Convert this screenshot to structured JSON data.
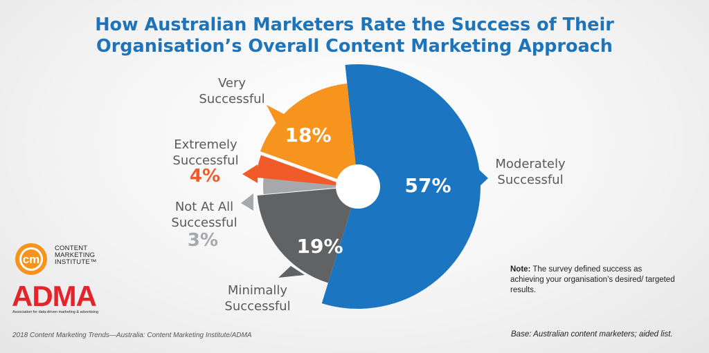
{
  "header": {
    "title_line1": "How Australian Marketers Rate the Success of Their",
    "title_line2": "Organisation’s Overall Content Marketing Approach"
  },
  "chart_data": {
    "type": "pie",
    "slices": [
      {
        "label_lines": [
          "Moderately",
          "Successful"
        ],
        "value": 57,
        "value_label": "57%",
        "color": "#1b75c0"
      },
      {
        "label_lines": [
          "Minimally",
          "Successful"
        ],
        "value": 19,
        "value_label": "19%",
        "color": "#616264"
      },
      {
        "label_lines": [
          "Not At All",
          "Successful"
        ],
        "value": 3,
        "value_label": "3%",
        "color": "#a6a8ab"
      },
      {
        "label_lines": [
          "Extremely",
          "Successful"
        ],
        "value": 4,
        "value_label": "4%",
        "color": "#f15a29"
      },
      {
        "label_lines": [
          "Very",
          "Successful"
        ],
        "value": 18,
        "value_label": "18%",
        "color": "#f7941d"
      }
    ]
  },
  "logos": {
    "cmi_mark": "cm",
    "cmi_line1": "CONTENT",
    "cmi_line2": "MARKETING",
    "cmi_line3": "INSTITUTE™",
    "adma_name": "ADMA",
    "adma_tagline": "Association for data-driven marketing & advertising"
  },
  "note": {
    "bold": "Note:",
    "text": " The survey defined success as achieving your organisation’s desired/ targeted results."
  },
  "base": "Base: Australian content marketers; aided list.",
  "source": "2018 Content Marketing Trends—Australia: Content Marketing Institute/ADMA"
}
